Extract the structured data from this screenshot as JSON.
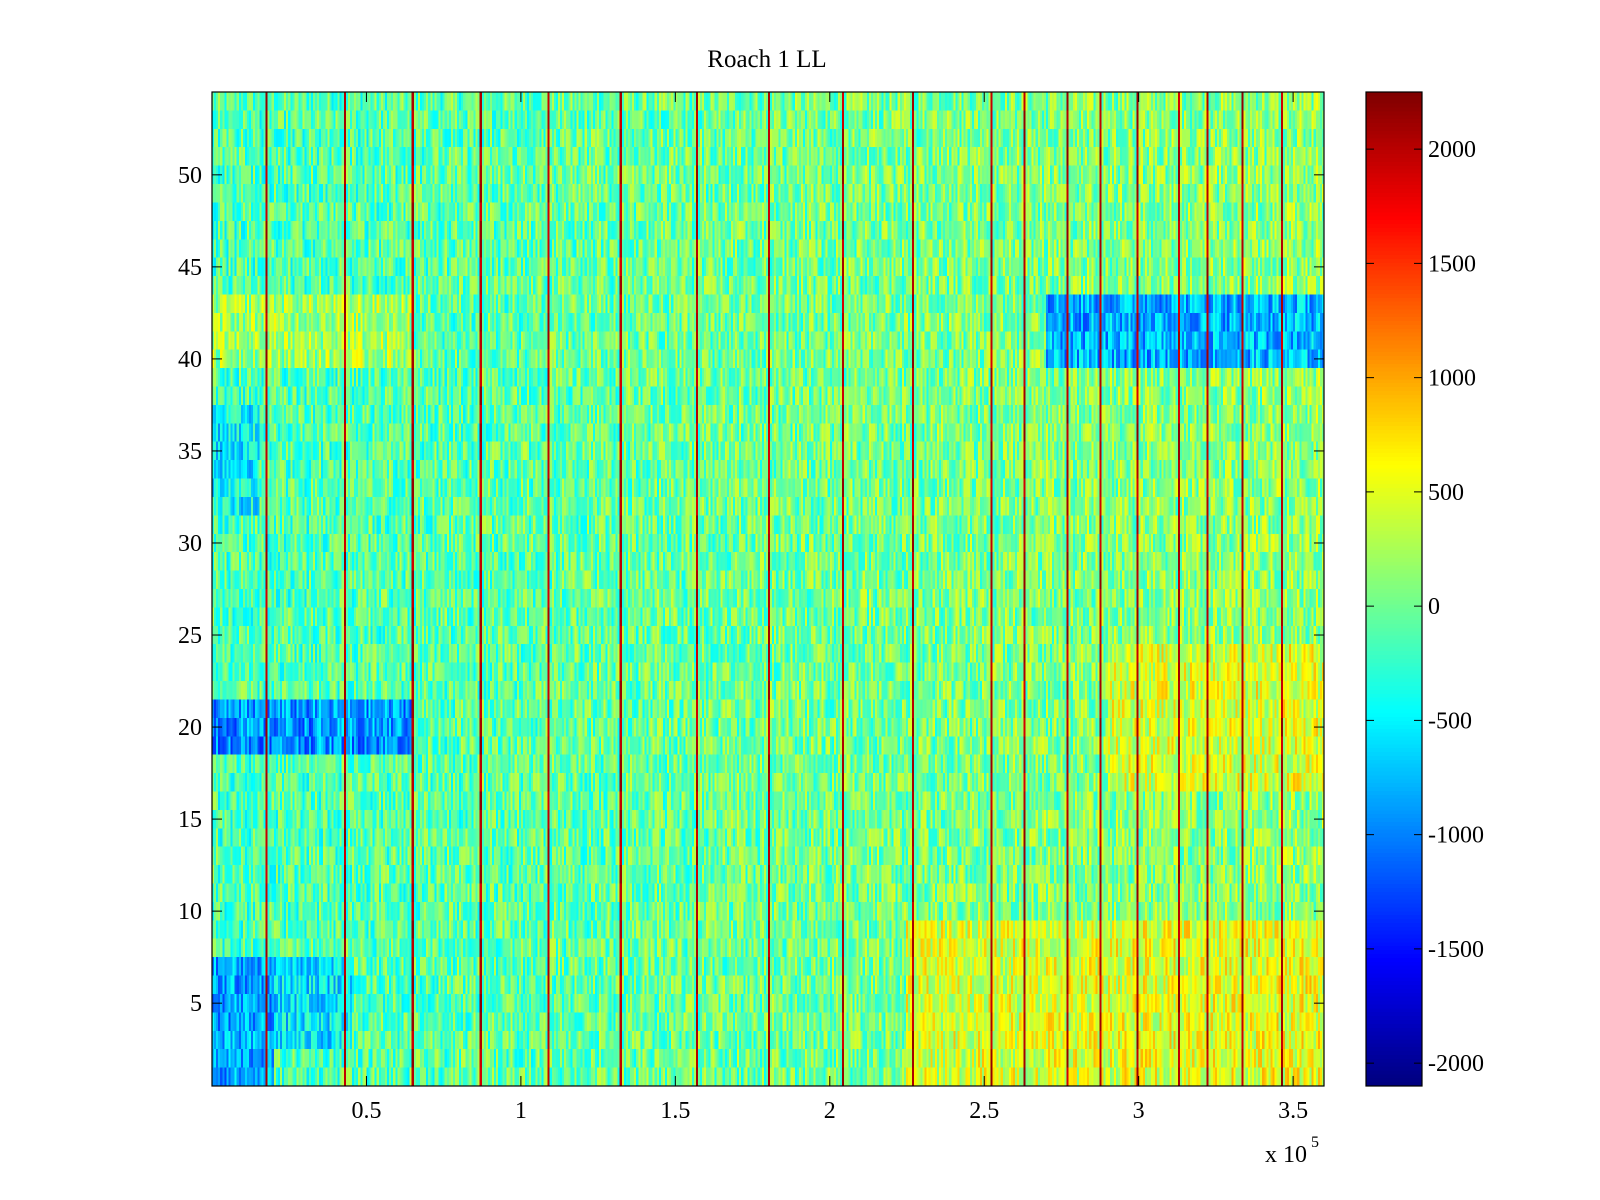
{
  "chart_data": {
    "type": "heatmap",
    "title": "Roach 1 LL",
    "xlabel": "",
    "ylabel": "",
    "x_multiplier_label": "x 10",
    "x_multiplier_exponent": "5",
    "xlim": [
      0,
      3.6
    ],
    "ylim": [
      0.5,
      54.5
    ],
    "rows": 54,
    "columns": 540,
    "x_ticks": [
      0.5,
      1,
      1.5,
      2,
      2.5,
      3,
      3.5
    ],
    "x_tick_labels": [
      "0.5",
      "1",
      "1.5",
      "2",
      "2.5",
      "3",
      "3.5"
    ],
    "y_ticks": [
      5,
      10,
      15,
      20,
      25,
      30,
      35,
      40,
      45,
      50
    ],
    "y_tick_labels": [
      "5",
      "10",
      "15",
      "20",
      "25",
      "30",
      "35",
      "40",
      "45",
      "50"
    ],
    "colormap": "jet",
    "clim": [
      -2100,
      2250
    ],
    "colorbar_ticks": [
      2000,
      1500,
      1000,
      500,
      0,
      -500,
      -1000,
      -1500,
      -2000
    ],
    "colorbar_tick_labels": [
      "2000",
      "1500",
      "1000",
      "500",
      "0",
      "-500",
      "-1000",
      "-1500",
      "-2000"
    ],
    "high_value_column_x": [
      0.18,
      0.43,
      0.65,
      0.87,
      1.09,
      1.32,
      1.57,
      1.8,
      2.04,
      2.27,
      2.52,
      2.63,
      2.77,
      2.88,
      3.0,
      3.13,
      3.22,
      3.34,
      3.46
    ],
    "high_value_column_value": 2200,
    "baseline_value": 0,
    "noise_amplitude": 450,
    "regional_offsets": [
      {
        "x_range": [
          0,
          0.65
        ],
        "y_range": [
          19,
          21
        ],
        "value": -800
      },
      {
        "x_range": [
          0,
          0.2
        ],
        "y_range": [
          1,
          7
        ],
        "value": -700
      },
      {
        "x_range": [
          0.2,
          0.45
        ],
        "y_range": [
          3,
          7
        ],
        "value": -450
      },
      {
        "x_range": [
          2.7,
          3.6
        ],
        "y_range": [
          40,
          43
        ],
        "value": -900
      },
      {
        "x_range": [
          0,
          0.65
        ],
        "y_range": [
          40,
          43
        ],
        "value": 350
      },
      {
        "x_range": [
          2.25,
          3.6
        ],
        "y_range": [
          1,
          9
        ],
        "value": 400
      },
      {
        "x_range": [
          2.9,
          3.6
        ],
        "y_range": [
          17,
          24
        ],
        "value": 350
      },
      {
        "x_range": [
          0,
          0.15
        ],
        "y_range": [
          32,
          37
        ],
        "value": -350
      }
    ],
    "x_gradient": {
      "from_value": -150,
      "to_value": 150
    }
  }
}
